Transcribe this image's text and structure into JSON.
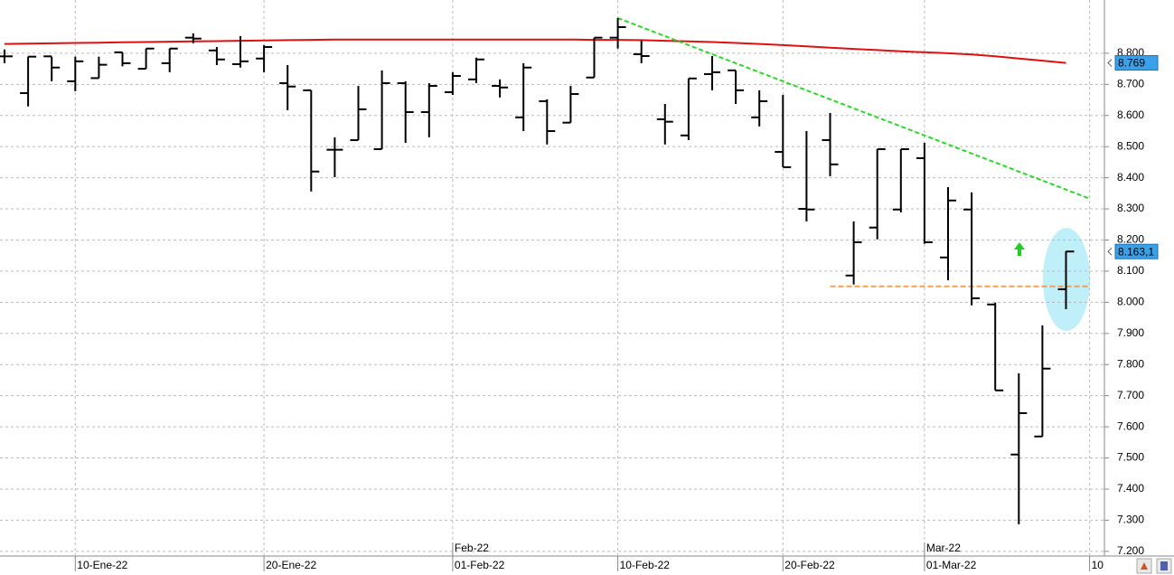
{
  "chart_data": {
    "type": "ohlc",
    "color": "#000000",
    "categories": [
      null,
      null,
      null,
      "10-Ene-22",
      null,
      null,
      null,
      null,
      null,
      null,
      null,
      "20-Ene-22",
      null,
      null,
      null,
      null,
      null,
      null,
      null,
      "01-Feb-22",
      null,
      null,
      null,
      null,
      null,
      null,
      "10-Feb-22",
      null,
      null,
      null,
      null,
      null,
      null,
      "20-Feb-22",
      null,
      null,
      null,
      null,
      null,
      "01-Mar-22",
      null,
      null,
      null,
      null,
      null,
      null,
      "10"
    ],
    "month_labels": [
      null,
      null,
      null,
      null,
      null,
      null,
      null,
      null,
      null,
      null,
      null,
      null,
      null,
      null,
      null,
      null,
      null,
      null,
      null,
      "Feb-22",
      null,
      null,
      null,
      null,
      null,
      null,
      null,
      null,
      null,
      null,
      null,
      null,
      null,
      null,
      null,
      null,
      null,
      null,
      null,
      "Mar-22",
      null,
      null,
      null,
      null,
      null,
      null,
      null
    ],
    "open": [
      8790,
      8672,
      8790,
      8710,
      8720,
      8803,
      8750,
      8768,
      8850,
      8809,
      8765,
      8783,
      8704,
      8681,
      8490,
      8521,
      8492,
      8704,
      8611,
      8675,
      8716,
      8695,
      8594,
      8646,
      8577,
      8722,
      8850,
      8797,
      8588,
      8536,
      8733,
      8745,
      8594,
      8483,
      8300,
      8521,
      8086,
      8240,
      8298,
      8463,
      8144,
      8298,
      7993,
      7511,
      7569,
      8042,
      null
    ],
    "high": [
      8812,
      8789,
      8789,
      8789,
      8789,
      8803,
      8815,
      8815,
      8864,
      8820,
      8855,
      8826,
      8762,
      8681,
      8530,
      8695,
      8745,
      8710,
      8704,
      8739,
      8786,
      8716,
      8768,
      8652,
      8695,
      8850,
      8913,
      8841,
      8637,
      8719,
      8791,
      8745,
      8681,
      8666,
      8550,
      8608,
      8260,
      8492,
      8492,
      8512,
      8370,
      8353,
      7999,
      7772,
      7926,
      8164,
      null
    ],
    "low": [
      8768,
      8629,
      8710,
      8678,
      8720,
      8758,
      8750,
      8739,
      8832,
      8762,
      8754,
      8739,
      8617,
      8356,
      8402,
      8521,
      8492,
      8512,
      8530,
      8666,
      8704,
      8658,
      8550,
      8507,
      8577,
      8722,
      8815,
      8768,
      8507,
      8521,
      8681,
      8637,
      8565,
      8434,
      8260,
      8405,
      8057,
      8202,
      8289,
      8188,
      8071,
      7990,
      7717,
      7287,
      7569,
      7978,
      null
    ],
    "close": [
      8790,
      8789,
      8754,
      8774,
      8763,
      8768,
      8815,
      8815,
      8847,
      8780,
      8774,
      8820,
      8693,
      8420,
      8490,
      8620,
      8704,
      8611,
      8695,
      8727,
      8780,
      8690,
      8754,
      8550,
      8669,
      8850,
      8884,
      8791,
      8580,
      8719,
      8739,
      8681,
      8646,
      8434,
      8298,
      8443,
      8193,
      8492,
      8492,
      8193,
      8327,
      8013,
      7717,
      7644,
      7787,
      8163.1,
      null
    ],
    "moving_average": {
      "color": "#e01010",
      "values": [
        8830,
        8831,
        8832,
        8833,
        8834,
        8835,
        8836,
        8837,
        8838,
        8839,
        8840,
        8841,
        8842,
        8843,
        8844,
        8844,
        8844,
        8844,
        8844,
        8844,
        8844,
        8844,
        8844,
        8844,
        8844,
        8843,
        8843,
        8842,
        8840,
        8838,
        8836,
        8833,
        8830,
        8826,
        8822,
        8818,
        8814,
        8810,
        8806,
        8803,
        8800,
        8796,
        8790,
        8783,
        8776,
        8769,
        null
      ]
    },
    "trendline": {
      "color": "#22dd22",
      "x": [
        26,
        46
      ],
      "y": [
        8913,
        8333
      ]
    },
    "support_line": {
      "color": "#f4a050",
      "x": [
        35,
        46
      ],
      "y": [
        8051,
        8051
      ]
    },
    "price_labels": [
      {
        "value": 8769,
        "label": "8.769"
      },
      {
        "value": 8163.1,
        "label": "8.163,1"
      }
    ],
    "ylim": [
      7185,
      8971
    ],
    "yticks": [
      {
        "value": 7200,
        "label": "7.200"
      },
      {
        "value": 7300,
        "label": "7.300"
      },
      {
        "value": 7400,
        "label": "7.400"
      },
      {
        "value": 7500,
        "label": "7.500"
      },
      {
        "value": 7600,
        "label": "7.600"
      },
      {
        "value": 7700,
        "label": "7.700"
      },
      {
        "value": 7800,
        "label": "7.800"
      },
      {
        "value": 7900,
        "label": "7.900"
      },
      {
        "value": 8000,
        "label": "8.000"
      },
      {
        "value": 8100,
        "label": "8.100"
      },
      {
        "value": 8200,
        "label": "8.200"
      },
      {
        "value": 8300,
        "label": "8.300"
      },
      {
        "value": 8400,
        "label": "8.400"
      },
      {
        "value": 8500,
        "label": "8.500"
      },
      {
        "value": 8600,
        "label": "8.600"
      },
      {
        "value": 8700,
        "label": "8.700"
      },
      {
        "value": 8800,
        "label": "8.800"
      }
    ],
    "grid": true
  }
}
